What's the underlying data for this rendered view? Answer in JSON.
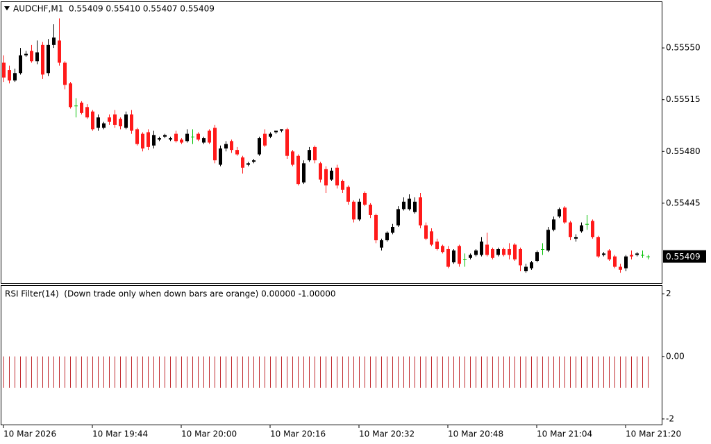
{
  "chart_data": {
    "type": "candlestick",
    "title": "AUDCHF,M1  0.55409 0.55410 0.55407 0.55409",
    "categories": [
      "10 Mar 2026",
      null,
      null,
      null,
      null,
      null,
      null,
      null,
      null,
      null,
      null,
      null,
      null,
      null,
      null,
      null,
      "10 Mar 19:44",
      null,
      null,
      null,
      null,
      null,
      null,
      null,
      null,
      null,
      null,
      null,
      null,
      null,
      null,
      null,
      "10 Mar 20:00",
      null,
      null,
      null,
      null,
      null,
      null,
      null,
      null,
      null,
      null,
      null,
      null,
      null,
      null,
      null,
      "10 Mar 20:16",
      null,
      null,
      null,
      null,
      null,
      null,
      null,
      null,
      null,
      null,
      null,
      null,
      null,
      null,
      null,
      "10 Mar 20:32",
      null,
      null,
      null,
      null,
      null,
      null,
      null,
      null,
      null,
      null,
      null,
      null,
      null,
      null,
      null,
      "10 Mar 20:48",
      null,
      null,
      null,
      null,
      null,
      null,
      null,
      null,
      null,
      null,
      null,
      null,
      null,
      null,
      null,
      "10 Mar 21:04",
      null,
      null,
      null,
      null,
      null,
      null,
      null,
      null,
      null,
      null,
      null,
      null,
      null,
      null,
      null,
      "10 Mar 21:20",
      null,
      null,
      null,
      null
    ],
    "open": [
      0.5554,
      0.55535,
      0.55528,
      0.55533,
      0.55545,
      0.55548,
      0.55541,
      0.55552,
      0.55533,
      0.55552,
      0.55555,
      0.5554,
      0.55526,
      0.55511,
      0.55513,
      0.5551,
      0.55507,
      0.55496,
      0.55496,
      0.55503,
      0.55505,
      0.55502,
      0.55496,
      0.55505,
      0.55495,
      0.55492,
      0.55493,
      0.55484,
      0.55488,
      0.5549,
      0.55488,
      0.55492,
      0.55488,
      0.55487,
      0.5549,
      0.55492,
      0.55486,
      0.55494,
      0.55496,
      0.55471,
      0.55482,
      0.55487,
      0.55481,
      0.55476,
      0.55471,
      0.55473,
      0.55478,
      0.55492,
      0.5549,
      0.55493,
      0.55494,
      0.55495,
      0.5548,
      0.55477,
      0.55459,
      0.55474,
      0.55483,
      0.55472,
      0.55468,
      0.55461,
      0.55469,
      0.5546,
      0.55456,
      0.55446,
      0.55434,
      0.55452,
      0.55444,
      0.55437,
      0.55415,
      0.5542,
      0.55425,
      0.5543,
      0.55441,
      0.55441,
      0.55439,
      0.55449,
      0.5543,
      0.55426,
      0.55419,
      0.55416,
      0.55414,
      0.55405,
      0.55416,
      0.55407,
      0.55408,
      0.5541,
      0.5541,
      0.55417,
      0.55414,
      0.5541,
      0.55414,
      0.55414,
      0.55417,
      0.55414,
      0.55399,
      0.55401,
      0.55406,
      0.55414,
      0.55413,
      0.55427,
      0.55436,
      0.55442,
      0.55432,
      0.55421,
      0.55426,
      0.55431,
      0.55433,
      0.55422,
      0.5541,
      0.55413,
      0.55409,
      0.55402,
      0.55401,
      0.5541,
      0.5541,
      0.5541,
      0.55409
    ],
    "high": [
      0.55545,
      0.55538,
      0.55536,
      0.5555,
      0.55548,
      0.55552,
      0.55555,
      0.55554,
      0.55556,
      0.55566,
      0.5557,
      0.55541,
      0.55527,
      0.55516,
      0.55514,
      0.55512,
      0.55508,
      0.55505,
      0.555,
      0.55505,
      0.55508,
      0.55503,
      0.55507,
      0.55508,
      0.55496,
      0.55493,
      0.55495,
      0.55494,
      0.5549,
      0.55492,
      0.5549,
      0.55494,
      0.55489,
      0.55495,
      0.55495,
      0.55493,
      0.5549,
      0.55495,
      0.55498,
      0.55484,
      0.55487,
      0.55488,
      0.55483,
      0.55477,
      0.55473,
      0.55475,
      0.5549,
      0.55495,
      0.55493,
      0.55494,
      0.55495,
      0.55496,
      0.55481,
      0.55478,
      0.55474,
      0.55483,
      0.55484,
      0.55473,
      0.5547,
      0.55469,
      0.55471,
      0.55461,
      0.55457,
      0.55447,
      0.55448,
      0.55453,
      0.55445,
      0.55438,
      0.55421,
      0.55426,
      0.55431,
      0.55443,
      0.55449,
      0.55451,
      0.55449,
      0.55452,
      0.55432,
      0.55428,
      0.55421,
      0.55417,
      0.55416,
      0.55414,
      0.55417,
      0.55411,
      0.55411,
      0.55414,
      0.55422,
      0.55425,
      0.55415,
      0.55415,
      0.55415,
      0.55418,
      0.55418,
      0.55415,
      0.55404,
      0.55406,
      0.55413,
      0.55418,
      0.55429,
      0.55436,
      0.55442,
      0.55443,
      0.55433,
      0.55424,
      0.55432,
      0.55437,
      0.55434,
      0.55423,
      0.55412,
      0.55414,
      0.5541,
      0.55404,
      0.5541,
      0.55413,
      0.55412,
      0.55413,
      0.5541
    ],
    "low": [
      0.55527,
      0.55526,
      0.55527,
      0.55532,
      0.55544,
      0.5554,
      0.55539,
      0.55529,
      0.55531,
      0.5555,
      0.55538,
      0.55522,
      0.55509,
      0.55503,
      0.55505,
      0.55502,
      0.55494,
      0.55494,
      0.55495,
      0.55498,
      0.55496,
      0.55495,
      0.55495,
      0.55492,
      0.55484,
      0.5548,
      0.55481,
      0.55482,
      0.55487,
      0.55489,
      0.55487,
      0.55486,
      0.55485,
      0.55486,
      0.55485,
      0.55487,
      0.55485,
      0.55485,
      0.55472,
      0.5547,
      0.5548,
      0.55479,
      0.55477,
      0.55465,
      0.5547,
      0.55472,
      0.55477,
      0.55483,
      0.55489,
      0.55492,
      0.55493,
      0.55475,
      0.5547,
      0.55457,
      0.55458,
      0.55473,
      0.55472,
      0.55459,
      0.55452,
      0.5546,
      0.55455,
      0.55452,
      0.55444,
      0.55432,
      0.55433,
      0.55443,
      0.55435,
      0.55418,
      0.55413,
      0.55419,
      0.55424,
      0.55429,
      0.5544,
      0.5544,
      0.55438,
      0.55428,
      0.5542,
      0.55416,
      0.55413,
      0.55411,
      0.55401,
      0.55404,
      0.55402,
      0.55402,
      0.55407,
      0.55409,
      0.55409,
      0.55409,
      0.55407,
      0.55409,
      0.55409,
      0.55407,
      0.55406,
      0.55399,
      0.55398,
      0.554,
      0.55405,
      0.5541,
      0.55412,
      0.55426,
      0.55435,
      0.55431,
      0.5542,
      0.55419,
      0.55425,
      0.55427,
      0.55421,
      0.55408,
      0.55409,
      0.55406,
      0.55401,
      0.55398,
      0.55399,
      0.55407,
      0.55409,
      0.55408,
      0.55407
    ],
    "close": [
      0.5553,
      0.55528,
      0.55533,
      0.55545,
      0.55546,
      0.55541,
      0.55547,
      0.55532,
      0.55552,
      0.55557,
      0.5554,
      0.55525,
      0.5551,
      0.55511,
      0.55506,
      0.55503,
      0.55495,
      0.55503,
      0.55499,
      0.555,
      0.55498,
      0.55497,
      0.55505,
      0.55494,
      0.55485,
      0.55482,
      0.55483,
      0.55491,
      0.55489,
      0.55491,
      0.55489,
      0.55487,
      0.55486,
      0.55492,
      0.5549,
      0.55488,
      0.55489,
      0.55486,
      0.55474,
      0.55482,
      0.55485,
      0.55481,
      0.55478,
      0.55469,
      0.55472,
      0.55474,
      0.55489,
      0.55484,
      0.55492,
      0.55494,
      0.55495,
      0.55477,
      0.55471,
      0.55458,
      0.55472,
      0.55481,
      0.55474,
      0.55461,
      0.55457,
      0.55467,
      0.55457,
      0.55454,
      0.55446,
      0.55434,
      0.55446,
      0.55444,
      0.55437,
      0.5542,
      0.5542,
      0.55425,
      0.55429,
      0.55441,
      0.55446,
      0.55448,
      0.55446,
      0.5543,
      0.55421,
      0.55417,
      0.55414,
      0.55412,
      0.55402,
      0.55413,
      0.55404,
      0.55407,
      0.5541,
      0.55413,
      0.55419,
      0.5541,
      0.55408,
      0.55414,
      0.5541,
      0.5541,
      0.55407,
      0.55403,
      0.55402,
      0.55405,
      0.55412,
      0.55414,
      0.55427,
      0.55434,
      0.55441,
      0.55432,
      0.55422,
      0.55422,
      0.5543,
      0.55431,
      0.55422,
      0.55409,
      0.55411,
      0.55407,
      0.55402,
      0.554,
      0.55409,
      0.55409,
      0.55411,
      0.5541,
      0.55409
    ],
    "bull_color": "#000000",
    "bear_color": "#ff1a1a",
    "doji_color": "#00c000",
    "ylim": [
      0.55391,
      0.55581
    ],
    "yticks": [
      {
        "value": 0.5555,
        "label": "0.55550"
      },
      {
        "value": 0.55515,
        "label": "0.55515"
      },
      {
        "value": 0.5548,
        "label": "0.55480"
      },
      {
        "value": 0.55445,
        "label": "0.55445"
      }
    ],
    "current_price": 0.55409,
    "indicator": {
      "type": "bar",
      "title": "RSI Filter(14)  (Down trade only when down bars are orange) 0.00000 -1.00000",
      "color": "#c0282d",
      "ylim": [
        -2.18,
        2.26
      ],
      "yticks": [
        2,
        {
          "value": 0,
          "label": "0.00"
        },
        -2
      ],
      "values": [
        -1,
        -1,
        -1,
        -1,
        -1,
        -1,
        -1,
        -1,
        -1,
        -1,
        -1,
        -1,
        -1,
        -1,
        -1,
        -1,
        -1,
        -1,
        -1,
        -1,
        -1,
        -1,
        -1,
        -1,
        -1,
        -1,
        -1,
        -1,
        -1,
        -1,
        -1,
        -1,
        -1,
        -1,
        -1,
        -1,
        -1,
        -1,
        -1,
        -1,
        -1,
        -1,
        -1,
        -1,
        -1,
        -1,
        -1,
        -1,
        -1,
        -1,
        -1,
        -1,
        -1,
        -1,
        -1,
        -1,
        -1,
        -1,
        -1,
        -1,
        -1,
        -1,
        -1,
        -1,
        -1,
        -1,
        -1,
        -1,
        -1,
        -1,
        -1,
        -1,
        -1,
        -1,
        -1,
        -1,
        -1,
        -1,
        -1,
        -1,
        -1,
        -1,
        -1,
        -1,
        -1,
        -1,
        -1,
        -1,
        -1,
        -1,
        -1,
        -1,
        -1,
        -1,
        -1,
        -1,
        -1,
        -1,
        -1,
        -1,
        -1,
        -1,
        -1,
        -1,
        -1,
        -1,
        -1,
        -1,
        -1,
        -1,
        -1,
        -1,
        -1,
        -1,
        -1,
        -1,
        -1
      ]
    }
  }
}
